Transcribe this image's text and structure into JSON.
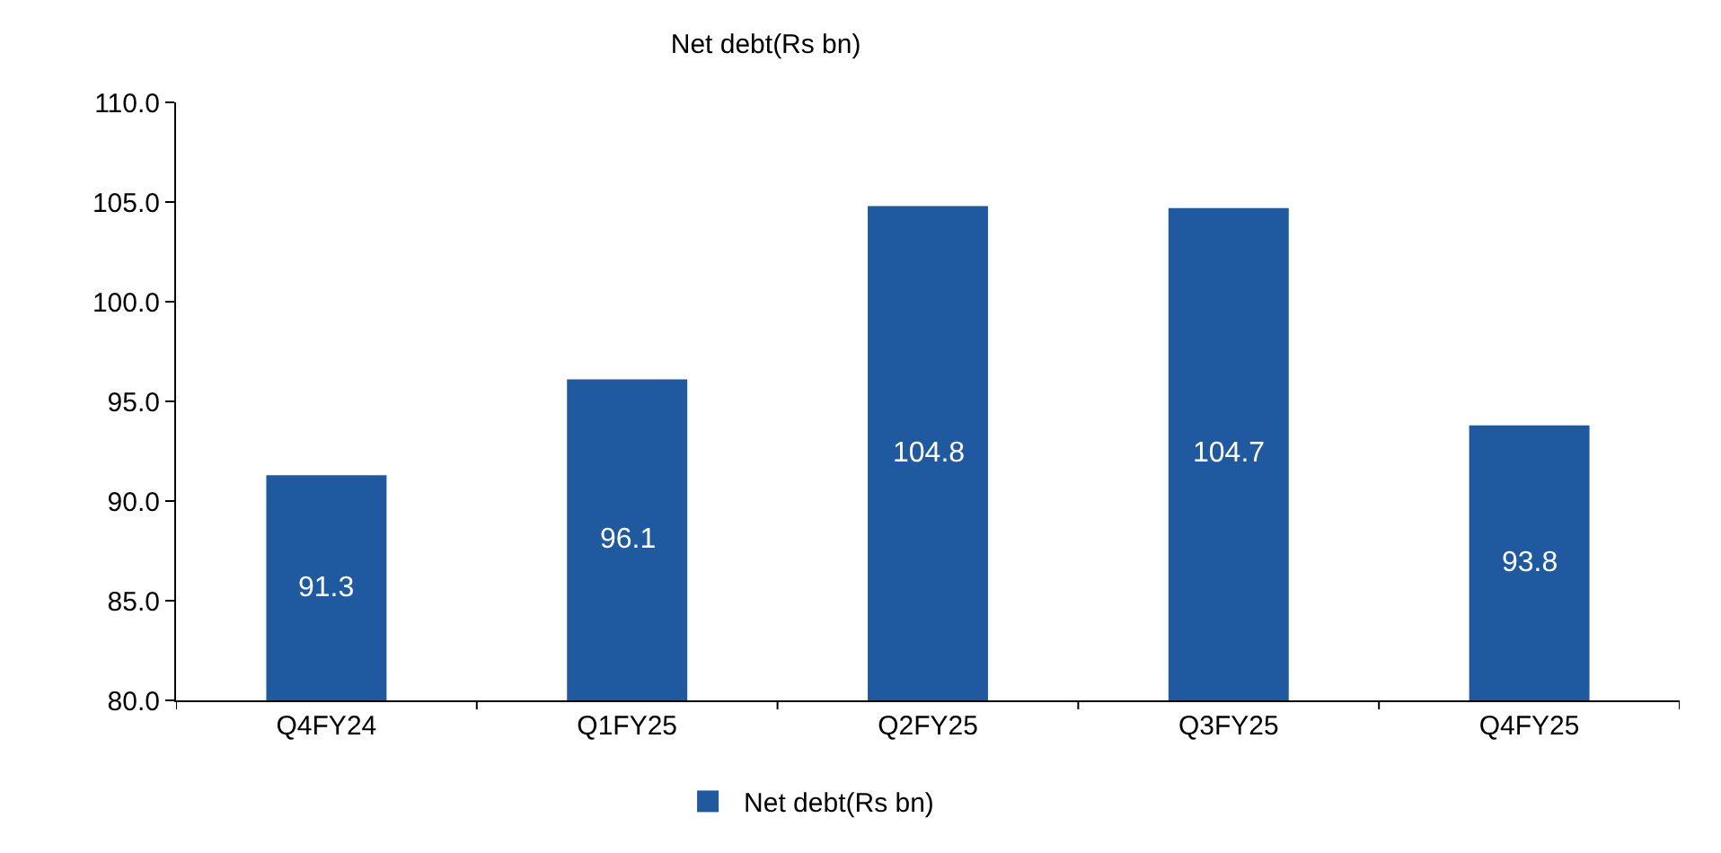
{
  "chart_data": {
    "type": "bar",
    "title": "Net debt(Rs bn)",
    "categories": [
      "Q4FY24",
      "Q1FY25",
      "Q2FY25",
      "Q3FY25",
      "Q4FY25"
    ],
    "series": [
      {
        "name": "Net debt(Rs bn)",
        "color": "#1f5aa0",
        "values": [
          91.3,
          96.1,
          104.8,
          104.7,
          93.8
        ]
      }
    ],
    "ylim": [
      80,
      110
    ],
    "yticks": [
      {
        "value": 80,
        "label": "80.0"
      },
      {
        "value": 85,
        "label": "85.0"
      },
      {
        "value": 90,
        "label": "90.0"
      },
      {
        "value": 95,
        "label": "95.0"
      },
      {
        "value": 100,
        "label": "100.0"
      },
      {
        "value": 105,
        "label": "105.0"
      },
      {
        "value": 110,
        "label": "110.0"
      }
    ],
    "data_labels": true,
    "grid": false,
    "legend": "bottom"
  }
}
